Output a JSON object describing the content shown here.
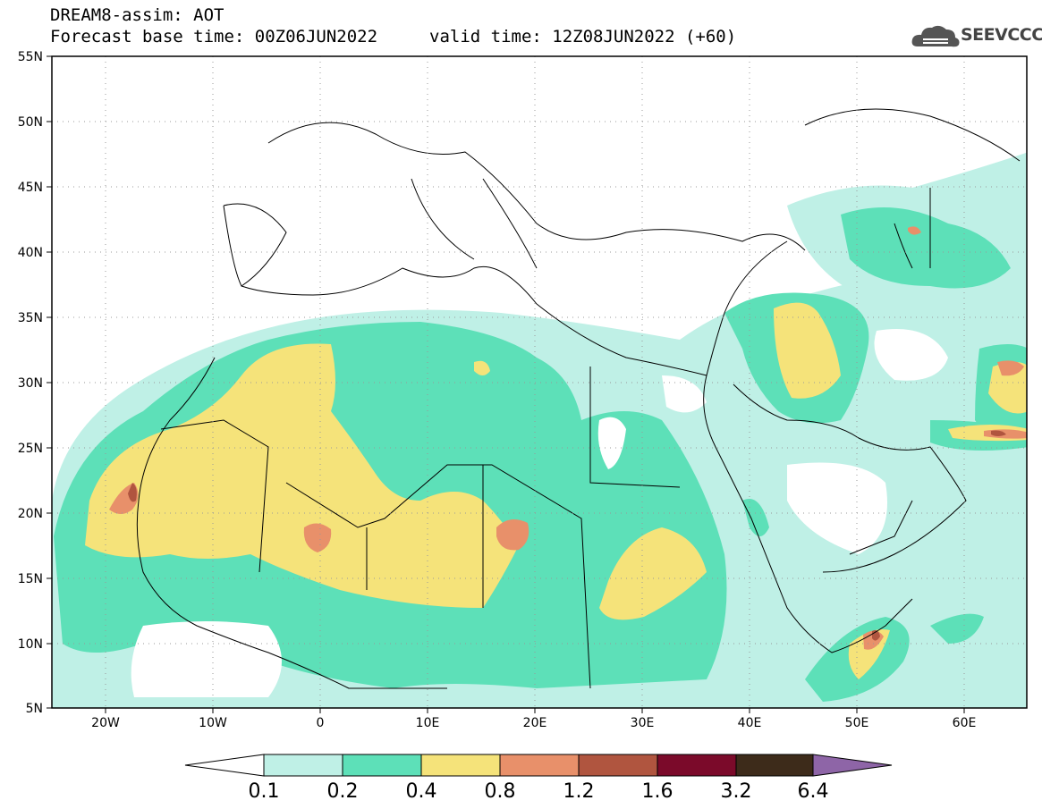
{
  "header": {
    "title": "DREAM8-assim: AOT",
    "base_time": "Forecast base time: 00Z06JUN2022",
    "valid_time": "valid time: 12Z08JUN2022 (+60)"
  },
  "logo": {
    "text": "SEEVCCC",
    "icon": "cloud-icon"
  },
  "map": {
    "lat_labels": [
      "55N",
      "50N",
      "45N",
      "40N",
      "35N",
      "30N",
      "25N",
      "20N",
      "15N",
      "10N",
      "5N"
    ],
    "lon_labels": [
      "20W",
      "10W",
      "0",
      "10E",
      "20E",
      "30E",
      "40E",
      "50E",
      "60E"
    ],
    "field": "AOT"
  },
  "colorbar": {
    "labels": [
      "0.1",
      "0.2",
      "0.4",
      "0.8",
      "1.2",
      "1.6",
      "3.2",
      "6.4"
    ],
    "colors": [
      "#ffffff",
      "#bff0e6",
      "#5de0b8",
      "#f5e37a",
      "#e8906a",
      "#b0553f",
      "#7b0a2a",
      "#3d2b1a",
      "#8e65a7"
    ]
  }
}
